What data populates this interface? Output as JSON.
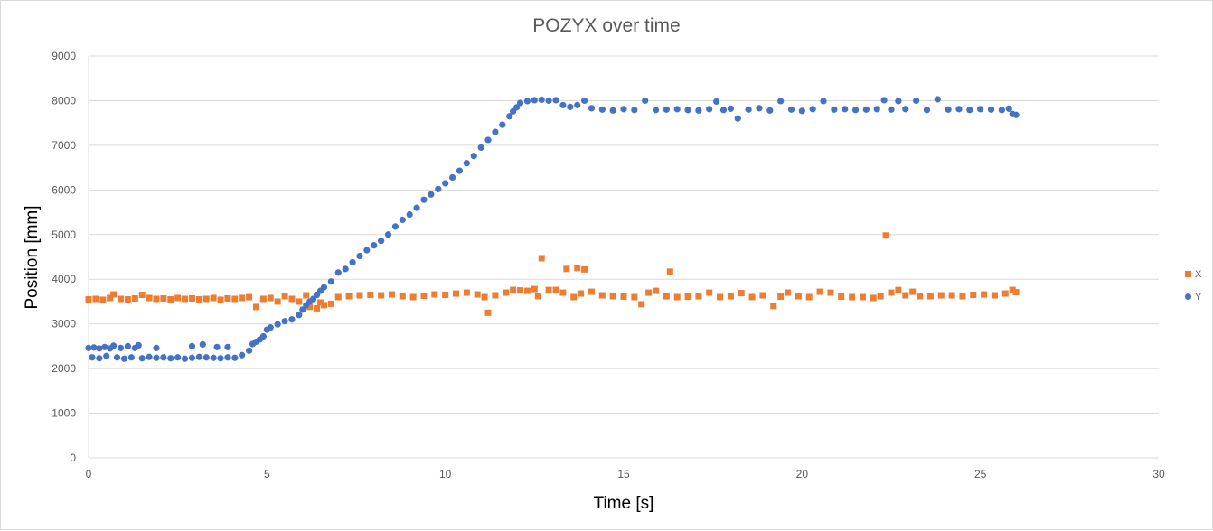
{
  "chart_data": {
    "type": "scatter",
    "title": "POZYX over time",
    "xlabel": "Time [s]",
    "ylabel": "Position [mm]",
    "xlim": [
      0,
      30
    ],
    "ylim": [
      0,
      9000
    ],
    "xticks": [
      0,
      5,
      10,
      15,
      20,
      25,
      30
    ],
    "yticks": [
      0,
      1000,
      2000,
      3000,
      4000,
      5000,
      6000,
      7000,
      8000,
      9000
    ],
    "grid": "horizontal",
    "legend_position": "right",
    "series": [
      {
        "name": "X",
        "color": "#ed7d31",
        "marker": "square",
        "points": [
          [
            0.0,
            3550
          ],
          [
            0.2,
            3560
          ],
          [
            0.4,
            3540
          ],
          [
            0.6,
            3580
          ],
          [
            0.7,
            3660
          ],
          [
            0.9,
            3560
          ],
          [
            1.1,
            3550
          ],
          [
            1.3,
            3570
          ],
          [
            1.5,
            3650
          ],
          [
            1.7,
            3580
          ],
          [
            1.9,
            3560
          ],
          [
            2.1,
            3570
          ],
          [
            2.3,
            3550
          ],
          [
            2.5,
            3580
          ],
          [
            2.7,
            3560
          ],
          [
            2.9,
            3570
          ],
          [
            3.1,
            3550
          ],
          [
            3.3,
            3560
          ],
          [
            3.5,
            3580
          ],
          [
            3.7,
            3540
          ],
          [
            3.9,
            3570
          ],
          [
            4.1,
            3560
          ],
          [
            4.3,
            3580
          ],
          [
            4.5,
            3600
          ],
          [
            4.7,
            3380
          ],
          [
            4.9,
            3560
          ],
          [
            5.1,
            3580
          ],
          [
            5.3,
            3500
          ],
          [
            5.5,
            3620
          ],
          [
            5.7,
            3560
          ],
          [
            5.9,
            3500
          ],
          [
            6.1,
            3640
          ],
          [
            6.2,
            3380
          ],
          [
            6.4,
            3350
          ],
          [
            6.5,
            3480
          ],
          [
            6.6,
            3420
          ],
          [
            6.8,
            3450
          ],
          [
            7.0,
            3600
          ],
          [
            7.3,
            3620
          ],
          [
            7.6,
            3640
          ],
          [
            7.9,
            3650
          ],
          [
            8.2,
            3640
          ],
          [
            8.5,
            3660
          ],
          [
            8.8,
            3620
          ],
          [
            9.1,
            3600
          ],
          [
            9.4,
            3630
          ],
          [
            9.7,
            3660
          ],
          [
            10.0,
            3650
          ],
          [
            10.3,
            3680
          ],
          [
            10.6,
            3700
          ],
          [
            10.9,
            3660
          ],
          [
            11.1,
            3600
          ],
          [
            11.2,
            3250
          ],
          [
            11.4,
            3640
          ],
          [
            11.7,
            3700
          ],
          [
            11.9,
            3760
          ],
          [
            12.1,
            3750
          ],
          [
            12.3,
            3740
          ],
          [
            12.5,
            3780
          ],
          [
            12.6,
            3620
          ],
          [
            12.7,
            4470
          ],
          [
            12.9,
            3760
          ],
          [
            13.1,
            3760
          ],
          [
            13.3,
            3700
          ],
          [
            13.4,
            4230
          ],
          [
            13.6,
            3600
          ],
          [
            13.7,
            4250
          ],
          [
            13.8,
            3680
          ],
          [
            13.9,
            4220
          ],
          [
            14.1,
            3720
          ],
          [
            14.4,
            3640
          ],
          [
            14.7,
            3620
          ],
          [
            15.0,
            3610
          ],
          [
            15.3,
            3600
          ],
          [
            15.5,
            3440
          ],
          [
            15.7,
            3700
          ],
          [
            15.9,
            3740
          ],
          [
            16.2,
            3620
          ],
          [
            16.3,
            4170
          ],
          [
            16.5,
            3600
          ],
          [
            16.8,
            3610
          ],
          [
            17.1,
            3620
          ],
          [
            17.4,
            3700
          ],
          [
            17.7,
            3600
          ],
          [
            18.0,
            3620
          ],
          [
            18.3,
            3690
          ],
          [
            18.6,
            3600
          ],
          [
            18.9,
            3640
          ],
          [
            19.2,
            3400
          ],
          [
            19.4,
            3610
          ],
          [
            19.6,
            3700
          ],
          [
            19.9,
            3620
          ],
          [
            20.2,
            3600
          ],
          [
            20.5,
            3720
          ],
          [
            20.8,
            3700
          ],
          [
            21.1,
            3610
          ],
          [
            21.4,
            3600
          ],
          [
            21.7,
            3600
          ],
          [
            22.0,
            3580
          ],
          [
            22.2,
            3620
          ],
          [
            22.35,
            4980
          ],
          [
            22.5,
            3700
          ],
          [
            22.7,
            3760
          ],
          [
            22.9,
            3640
          ],
          [
            23.1,
            3720
          ],
          [
            23.3,
            3620
          ],
          [
            23.6,
            3620
          ],
          [
            23.9,
            3640
          ],
          [
            24.2,
            3640
          ],
          [
            24.5,
            3620
          ],
          [
            24.8,
            3650
          ],
          [
            25.1,
            3660
          ],
          [
            25.4,
            3640
          ],
          [
            25.7,
            3680
          ],
          [
            25.9,
            3760
          ],
          [
            26.0,
            3710
          ]
        ]
      },
      {
        "name": "Y",
        "color": "#4472c4",
        "marker": "circle",
        "points": [
          [
            0.0,
            2460
          ],
          [
            0.15,
            2470
          ],
          [
            0.3,
            2450
          ],
          [
            0.45,
            2480
          ],
          [
            0.6,
            2450
          ],
          [
            0.7,
            2510
          ],
          [
            0.9,
            2460
          ],
          [
            1.1,
            2500
          ],
          [
            1.3,
            2460
          ],
          [
            1.4,
            2520
          ],
          [
            0.1,
            2250
          ],
          [
            0.3,
            2230
          ],
          [
            0.5,
            2280
          ],
          [
            0.8,
            2250
          ],
          [
            1.0,
            2220
          ],
          [
            1.2,
            2250
          ],
          [
            1.5,
            2230
          ],
          [
            1.7,
            2260
          ],
          [
            1.9,
            2240
          ],
          [
            2.1,
            2250
          ],
          [
            2.3,
            2230
          ],
          [
            2.5,
            2250
          ],
          [
            2.7,
            2220
          ],
          [
            2.9,
            2240
          ],
          [
            3.1,
            2260
          ],
          [
            3.3,
            2250
          ],
          [
            3.5,
            2240
          ],
          [
            3.7,
            2230
          ],
          [
            3.9,
            2250
          ],
          [
            4.1,
            2240
          ],
          [
            1.9,
            2460
          ],
          [
            2.9,
            2500
          ],
          [
            3.2,
            2540
          ],
          [
            3.6,
            2480
          ],
          [
            3.9,
            2480
          ],
          [
            4.3,
            2300
          ],
          [
            4.5,
            2400
          ],
          [
            4.6,
            2550
          ],
          [
            4.7,
            2600
          ],
          [
            4.8,
            2650
          ],
          [
            4.9,
            2720
          ],
          [
            5.0,
            2870
          ],
          [
            5.1,
            2920
          ],
          [
            5.3,
            2990
          ],
          [
            5.5,
            3060
          ],
          [
            5.7,
            3100
          ],
          [
            5.9,
            3200
          ],
          [
            6.0,
            3320
          ],
          [
            6.1,
            3420
          ],
          [
            6.2,
            3500
          ],
          [
            6.3,
            3560
          ],
          [
            6.4,
            3650
          ],
          [
            6.5,
            3740
          ],
          [
            6.6,
            3820
          ],
          [
            6.8,
            3950
          ],
          [
            7.0,
            4150
          ],
          [
            7.2,
            4230
          ],
          [
            7.4,
            4380
          ],
          [
            7.6,
            4520
          ],
          [
            7.8,
            4650
          ],
          [
            8.0,
            4760
          ],
          [
            8.2,
            4860
          ],
          [
            8.4,
            5000
          ],
          [
            8.6,
            5180
          ],
          [
            8.8,
            5330
          ],
          [
            9.0,
            5450
          ],
          [
            9.2,
            5600
          ],
          [
            9.4,
            5780
          ],
          [
            9.6,
            5900
          ],
          [
            9.8,
            6020
          ],
          [
            10.0,
            6150
          ],
          [
            10.2,
            6280
          ],
          [
            10.4,
            6430
          ],
          [
            10.6,
            6600
          ],
          [
            10.8,
            6760
          ],
          [
            11.0,
            6950
          ],
          [
            11.2,
            7120
          ],
          [
            11.4,
            7300
          ],
          [
            11.6,
            7460
          ],
          [
            11.8,
            7650
          ],
          [
            11.9,
            7760
          ],
          [
            12.0,
            7850
          ],
          [
            12.1,
            7950
          ],
          [
            12.3,
            7990
          ],
          [
            12.5,
            8010
          ],
          [
            12.7,
            8020
          ],
          [
            12.9,
            8000
          ],
          [
            13.1,
            8010
          ],
          [
            13.3,
            7900
          ],
          [
            13.5,
            7860
          ],
          [
            13.7,
            7900
          ],
          [
            13.9,
            8000
          ],
          [
            14.1,
            7830
          ],
          [
            14.4,
            7800
          ],
          [
            14.7,
            7780
          ],
          [
            15.0,
            7810
          ],
          [
            15.3,
            7790
          ],
          [
            15.6,
            8000
          ],
          [
            15.9,
            7790
          ],
          [
            16.2,
            7800
          ],
          [
            16.5,
            7810
          ],
          [
            16.8,
            7790
          ],
          [
            17.1,
            7780
          ],
          [
            17.4,
            7810
          ],
          [
            17.6,
            7980
          ],
          [
            17.8,
            7790
          ],
          [
            18.0,
            7820
          ],
          [
            18.2,
            7600
          ],
          [
            18.5,
            7800
          ],
          [
            18.8,
            7830
          ],
          [
            19.1,
            7780
          ],
          [
            19.4,
            7990
          ],
          [
            19.7,
            7800
          ],
          [
            20.0,
            7770
          ],
          [
            20.3,
            7810
          ],
          [
            20.6,
            7990
          ],
          [
            20.9,
            7800
          ],
          [
            21.2,
            7810
          ],
          [
            21.5,
            7790
          ],
          [
            21.8,
            7800
          ],
          [
            22.1,
            7810
          ],
          [
            22.3,
            8010
          ],
          [
            22.5,
            7800
          ],
          [
            22.7,
            7990
          ],
          [
            22.9,
            7810
          ],
          [
            23.2,
            8000
          ],
          [
            23.5,
            7790
          ],
          [
            23.8,
            8030
          ],
          [
            24.1,
            7800
          ],
          [
            24.4,
            7810
          ],
          [
            24.7,
            7790
          ],
          [
            25.0,
            7810
          ],
          [
            25.3,
            7800
          ],
          [
            25.6,
            7790
          ],
          [
            25.8,
            7820
          ],
          [
            25.9,
            7700
          ],
          [
            26.0,
            7680
          ]
        ]
      }
    ]
  }
}
